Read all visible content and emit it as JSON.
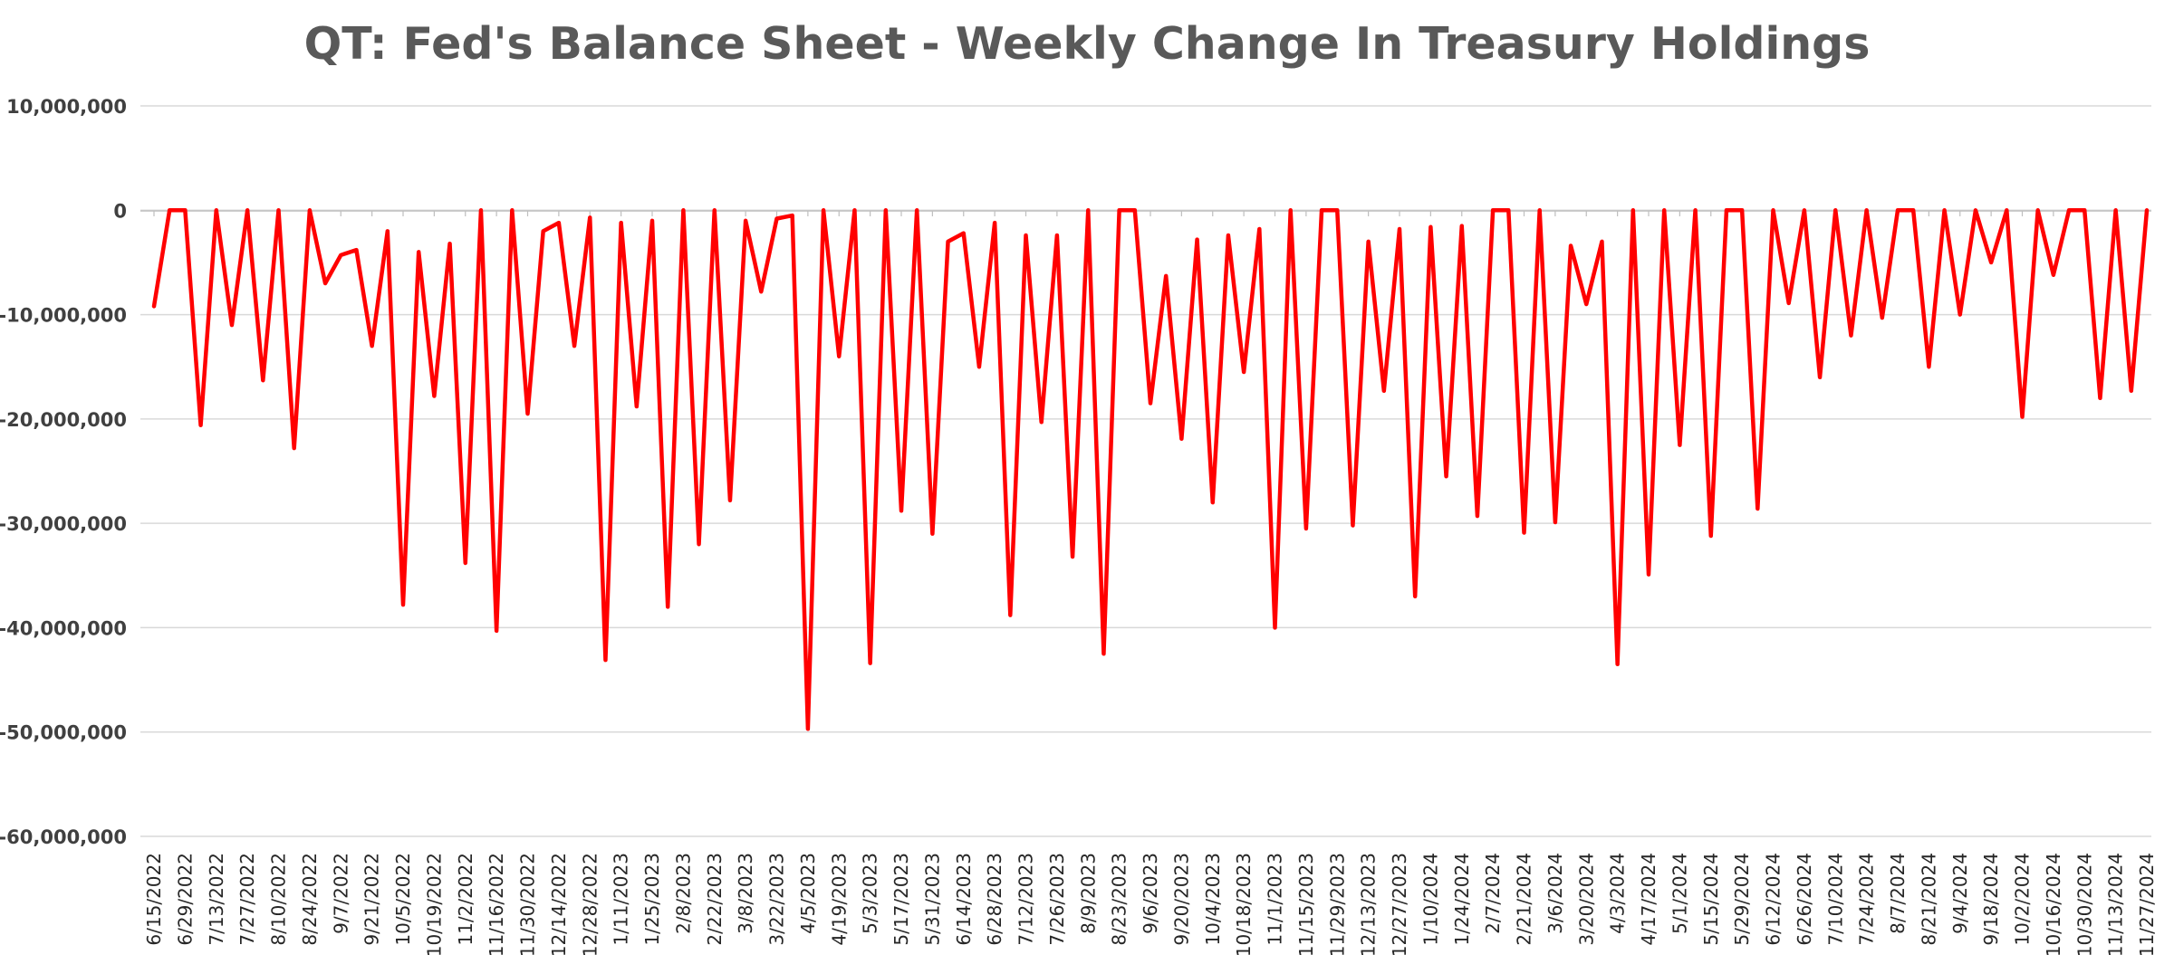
{
  "chart_data": {
    "type": "line",
    "title": "QT: Fed's Balance Sheet - Weekly Change In Treasury Holdings",
    "xlabel": "",
    "ylabel": "",
    "ylim": [
      -60000000,
      10000000
    ],
    "y_ticks": [
      "10,000,000",
      "0",
      "-10,000,000",
      "-20,000,000",
      "-30,000,000",
      "-40,000,000",
      "-50,000,000",
      "-60,000,000"
    ],
    "grid": true,
    "legend": "none",
    "x_tick_labels": [
      "6/15/2022",
      "6/29/2022",
      "7/13/2022",
      "7/27/2022",
      "8/10/2022",
      "8/24/2022",
      "9/7/2022",
      "9/21/2022",
      "10/5/2022",
      "10/19/2022",
      "11/2/2022",
      "11/16/2022",
      "11/30/2022",
      "12/14/2022",
      "12/28/2022",
      "1/11/2023",
      "1/25/2023",
      "2/8/2023",
      "2/22/2023",
      "3/8/2023",
      "3/22/2023",
      "4/5/2023",
      "4/19/2023",
      "5/3/2023",
      "5/17/2023",
      "5/31/2023",
      "6/14/2023",
      "6/28/2023",
      "7/12/2023",
      "7/26/2023",
      "8/9/2023",
      "8/23/2023",
      "9/6/2023",
      "9/20/2023",
      "10/4/2023",
      "10/18/2023",
      "11/1/2023",
      "11/15/2023",
      "11/29/2023",
      "12/13/2023",
      "12/27/2023",
      "1/10/2024",
      "1/24/2024",
      "2/7/2024",
      "2/21/2024",
      "3/6/2024",
      "3/20/2024",
      "4/3/2024",
      "4/17/2024",
      "5/1/2024",
      "5/15/2024",
      "5/29/2024",
      "6/12/2024",
      "6/26/2024",
      "7/10/2024",
      "7/24/2024",
      "8/7/2024",
      "8/21/2024",
      "9/4/2024",
      "9/18/2024",
      "10/2/2024",
      "10/16/2024",
      "10/30/2024",
      "11/13/2024",
      "11/27/2024"
    ],
    "series": [
      {
        "color": "#ff0000",
        "values": [
          -9200000,
          0,
          0,
          -20600000,
          0,
          -11000000,
          0,
          -16300000,
          0,
          -22800000,
          0,
          -7000000,
          -4300000,
          -3800000,
          -13000000,
          -2000000,
          -37800000,
          -4000000,
          -17800000,
          -3200000,
          -33800000,
          0,
          -40300000,
          0,
          -19500000,
          -2000000,
          -1200000,
          -13000000,
          -700000,
          -43100000,
          -1200000,
          -18800000,
          -1000000,
          -38000000,
          0,
          -32000000,
          0,
          -27800000,
          -1000000,
          -7800000,
          -800000,
          -500000,
          -49700000,
          0,
          -14000000,
          0,
          -43400000,
          0,
          -28800000,
          0,
          -31000000,
          -3000000,
          -2200000,
          -15000000,
          -1200000,
          -38800000,
          -2400000,
          -20300000,
          -2400000,
          -33200000,
          0,
          -42500000,
          0,
          0,
          -18500000,
          -6300000,
          -21900000,
          -2800000,
          -28000000,
          -2400000,
          -15500000,
          -1800000,
          -40000000,
          0,
          -30500000,
          0,
          0,
          -30200000,
          -3000000,
          -17300000,
          -1800000,
          -37000000,
          -1600000,
          -25500000,
          -1500000,
          -29300000,
          0,
          0,
          -30900000,
          0,
          -29900000,
          -3400000,
          -9000000,
          -3000000,
          -43500000,
          0,
          -34900000,
          0,
          -22500000,
          0,
          -31200000,
          0,
          0,
          -28600000,
          0,
          -8900000,
          0,
          -16000000,
          0,
          -12000000,
          0,
          -10300000,
          0,
          0,
          -15000000,
          0,
          -10000000,
          0,
          -5000000,
          0,
          -19800000,
          0,
          -6200000,
          0,
          0,
          -18000000,
          0,
          -17300000,
          0
        ]
      }
    ]
  }
}
